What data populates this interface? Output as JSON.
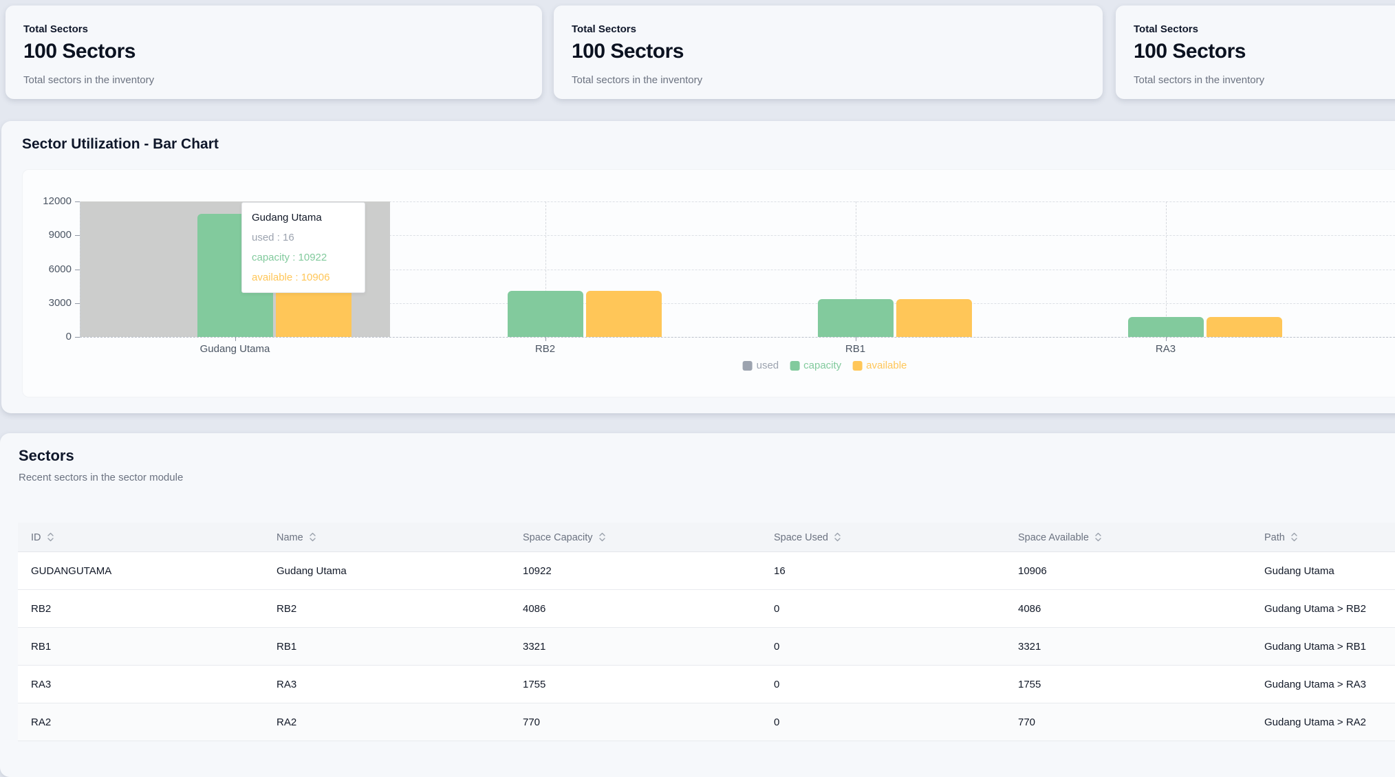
{
  "stat_cards": [
    {
      "label": "Total Sectors",
      "value": "100 Sectors",
      "description": "Total sectors in the inventory"
    },
    {
      "label": "Total Sectors",
      "value": "100 Sectors",
      "description": "Total sectors in the inventory"
    },
    {
      "label": "Total Sectors",
      "value": "100 Sectors",
      "description": "Total sectors in the inventory"
    }
  ],
  "chart_section": {
    "title": "Sector Utilization - Bar Chart"
  },
  "chart_data": {
    "type": "bar",
    "title": "Sector Utilization - Bar Chart",
    "categories": [
      "Gudang Utama",
      "RB2",
      "RB1",
      "RA3"
    ],
    "series": [
      {
        "name": "used",
        "color": "#9ca3af",
        "values": [
          16,
          0,
          0,
          0
        ]
      },
      {
        "name": "capacity",
        "color": "#82ca9d",
        "values": [
          10922,
          4086,
          3321,
          1755
        ]
      },
      {
        "name": "available",
        "color": "#ffc658",
        "values": [
          10906,
          4086,
          3321,
          1755
        ]
      }
    ],
    "ylim": [
      0,
      12000
    ],
    "yticks": [
      0,
      3000,
      6000,
      9000,
      12000
    ],
    "grid": "dashed",
    "legend_position": "bottom",
    "active_category": "Gudang Utama",
    "tooltip": {
      "title": "Gudang Utama",
      "lines": [
        {
          "name": "used",
          "value": "16",
          "color": "#9ca3af"
        },
        {
          "name": "capacity",
          "value": "10922",
          "color": "#82ca9d"
        },
        {
          "name": "available",
          "value": "10906",
          "color": "#ffc658"
        }
      ]
    }
  },
  "table_section": {
    "title": "Sectors",
    "subtitle": "Recent sectors in the sector module",
    "columns": [
      {
        "label": "ID"
      },
      {
        "label": "Name"
      },
      {
        "label": "Space Capacity"
      },
      {
        "label": "Space Used"
      },
      {
        "label": "Space Available"
      },
      {
        "label": "Path"
      }
    ],
    "rows": [
      [
        "GUDANGUTAMA",
        "Gudang Utama",
        "10922",
        "16",
        "10906",
        "Gudang Utama"
      ],
      [
        "RB2",
        "RB2",
        "4086",
        "0",
        "4086",
        "Gudang Utama > RB2"
      ],
      [
        "RB1",
        "RB1",
        "3321",
        "0",
        "3321",
        "Gudang Utama > RB1"
      ],
      [
        "RA3",
        "RA3",
        "1755",
        "0",
        "1755",
        "Gudang Utama > RA3"
      ],
      [
        "RA2",
        "RA2",
        "770",
        "0",
        "770",
        "Gudang Utama > RA2"
      ]
    ]
  },
  "colors": {
    "page_bg": "#e4e8f0",
    "card_bg": "#f6f8fb",
    "chart_panel_bg": "#fcfdfe",
    "hover_band": "#cccdcc",
    "grid_line": "#dcdfe5",
    "used": "#9ca3af",
    "capacity": "#82ca9d",
    "available": "#ffc658"
  }
}
